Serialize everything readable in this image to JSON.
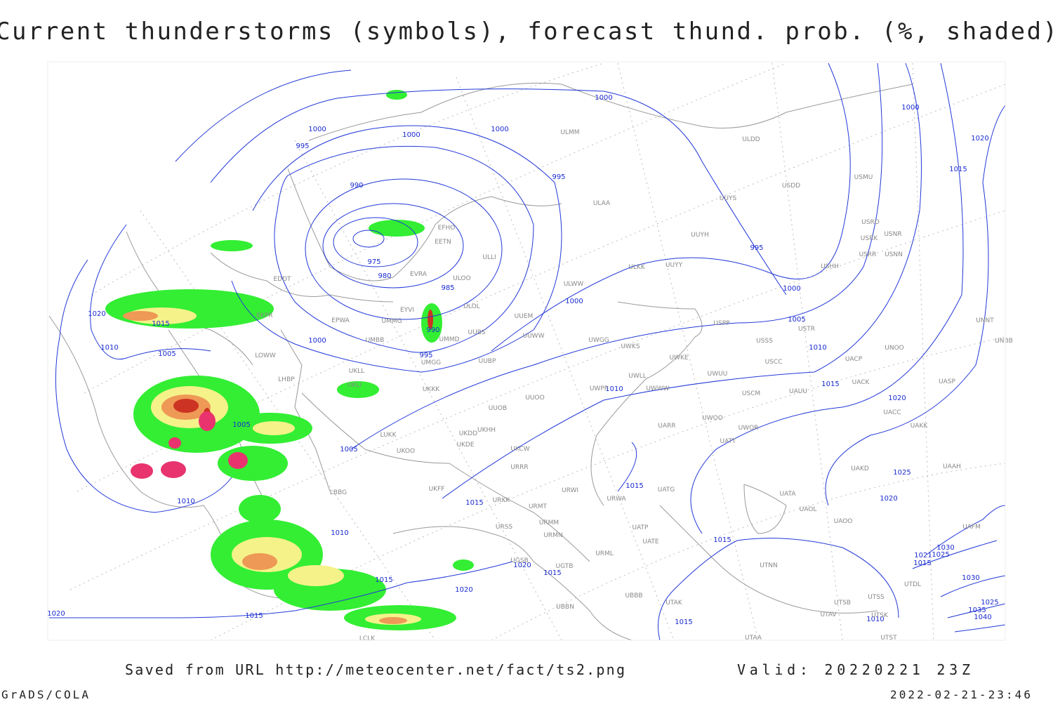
{
  "header": {
    "title": "Current thunderstorms (symbols), forecast thund. prob. (%, shaded)"
  },
  "footer": {
    "source": "Saved from URL http://meteocenter.net/fact/ts2.png",
    "valid": "Valid: 20220221 23Z",
    "software": "GrADS/COLA",
    "timestamp": "2022-02-21-23:46"
  },
  "map": {
    "isobar_labels": [
      1000,
      1000,
      1000,
      1000,
      995,
      995,
      990,
      975,
      980,
      985,
      995,
      1000,
      1000,
      1020,
      1015,
      1010,
      1005,
      990,
      1000,
      995,
      1005,
      1010,
      1015,
      1020,
      1010,
      1005,
      1005,
      1025,
      1020,
      1015,
      1015,
      1010,
      1010,
      1015,
      1015,
      1020,
      1015,
      1020,
      1020,
      1015,
      1015,
      1010,
      1020,
      1015,
      1030,
      1025,
      1021,
      1015,
      1030,
      1025,
      1035,
      1040,
      1000
    ],
    "station_labels": [
      "ULMM",
      "ULDD",
      "USDD",
      "USMU",
      "UUYS",
      "ULAA",
      "USRO",
      "USRK",
      "USNR",
      "UUYH",
      "USRR",
      "USNN",
      "EFHO",
      "EETN",
      "ULLI",
      "ULKK",
      "UUYY",
      "USHH",
      "EVRA",
      "ULOO",
      "EDDT",
      "ULWW",
      "ULOL",
      "EYVI",
      "UUEM",
      "EKPR",
      "EPWA",
      "UMMG",
      "UUBS",
      "USPP",
      "USTR",
      "UNNT",
      "UMMD",
      "UUWW",
      "UMBB",
      "UWGG",
      "UWKS",
      "USSS",
      "UNBB",
      "LOWW",
      "UWKE",
      "UACP",
      "UNOO",
      "UMGG",
      "UUBP",
      "USCC",
      "UKLL",
      "UWLL",
      "UWUU",
      "LHBP",
      "UACK",
      "UASP",
      "UKLI",
      "UKKK",
      "UWPP",
      "UWWW",
      "USCM",
      "UAUU",
      "UUOO",
      "UUOB",
      "UACC",
      "UKHH",
      "UARR",
      "UWOO",
      "UWOR",
      "UAKK",
      "LUKK",
      "UKDD",
      "UATT",
      "UKOO",
      "UKDE",
      "UKCW",
      "UAKD",
      "UAAH",
      "URRR",
      "UKFF",
      "URWI",
      "UATG",
      "UATA",
      "LBBG",
      "URKK",
      "URWA",
      "URMT",
      "UAOL",
      "URSS",
      "URMM",
      "UATP",
      "UAOO",
      "UAFM",
      "URMN",
      "UATE",
      "UTNN",
      "UGSB",
      "URML",
      "UGTB",
      "UTDL",
      "UTAK",
      "UBBB",
      "UTSS",
      "UTSB",
      "UTAV",
      "UTSK",
      "UTAA",
      "UTST",
      "LCLK",
      "UBBN"
    ]
  }
}
